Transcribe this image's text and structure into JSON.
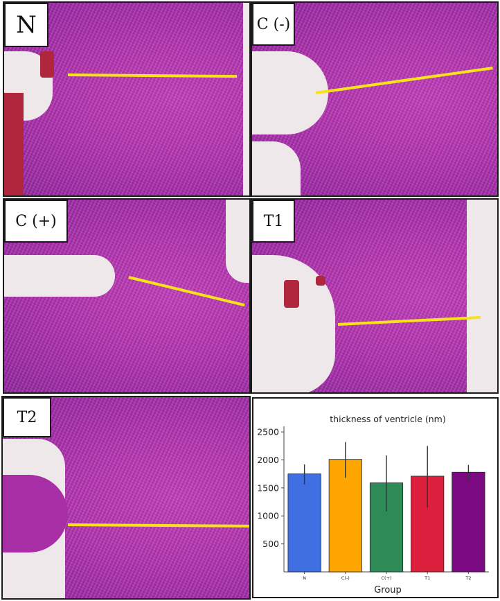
{
  "panels": [
    {
      "id": "N",
      "label": "N"
    },
    {
      "id": "C-",
      "label": "C (-)"
    },
    {
      "id": "C+",
      "label": "C (+)"
    },
    {
      "id": "T1",
      "label": "T1"
    },
    {
      "id": "T2",
      "label": "T2"
    }
  ],
  "colors": {
    "tissue": "#b233ad",
    "measure_line": "#f7e21b",
    "slide_background": "#eee8ea",
    "blood": "#b0263c"
  },
  "chart_data": {
    "type": "bar",
    "title": "thickness of ventricle (nm)",
    "xlabel": "Group",
    "ylabel": "",
    "categories": [
      "N",
      "C(-)",
      "C(+)",
      "T1",
      "T2"
    ],
    "values": [
      1750,
      2010,
      1590,
      1710,
      1780
    ],
    "error_low": [
      1560,
      1680,
      1080,
      1150,
      1640
    ],
    "error_high": [
      1920,
      2320,
      2080,
      2250,
      1910
    ],
    "colors": [
      "#3f6fe0",
      "#ffa500",
      "#2e8b57",
      "#dc1f3c",
      "#7b0a82"
    ],
    "yticks": [
      500,
      1000,
      1500,
      2000,
      2500
    ],
    "ylim": [
      0,
      2600
    ],
    "grid": false,
    "legend": "none"
  }
}
